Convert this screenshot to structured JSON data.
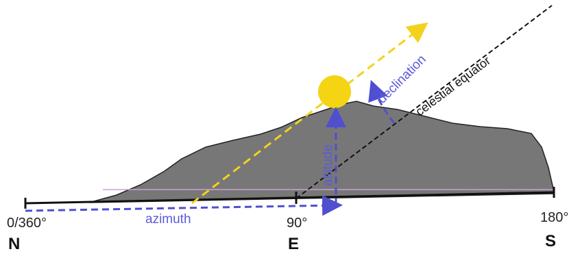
{
  "labels": {
    "north_angle": "0/360°",
    "north": "N",
    "east_angle": "90°",
    "east": "E",
    "south_angle": "180°",
    "south": "S",
    "azimuth": "azimuth",
    "altitude": "altitude",
    "declination": "declination",
    "celestial_equator": "celestial equator"
  }
}
